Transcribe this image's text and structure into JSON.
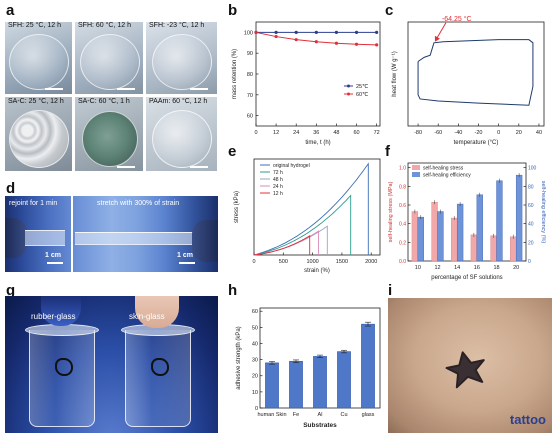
{
  "panels": {
    "a": {
      "label": "a",
      "captions": [
        "SFH: 25 °C, 12 h",
        "SFH: 60 °C, 12 h",
        "SFH: -23 °C, 12 h",
        "SA-C: 25 °C, 12 h",
        "SA-C: 60 °C, 1 h",
        "PAAm: 60 °C, 12 h"
      ]
    },
    "b": {
      "label": "b"
    },
    "c": {
      "label": "c"
    },
    "d": {
      "label": "d",
      "left_caption": "rejoint for 1 min",
      "right_caption": "stretch with 300% of strain",
      "scale_left": "1 cm",
      "scale_right": "1 cm"
    },
    "e": {
      "label": "e"
    },
    "f": {
      "label": "f"
    },
    "g": {
      "label": "g",
      "left_caption": "rubber-glass",
      "right_caption": "skin-glass"
    },
    "h": {
      "label": "h"
    },
    "i": {
      "label": "i",
      "caption": "tattoo"
    }
  },
  "chart_data": [
    {
      "panel": "b",
      "type": "line",
      "xlabel": "time, t (h)",
      "ylabel": "mass retention (%)",
      "xticks": [
        0,
        12,
        24,
        36,
        48,
        60,
        72
      ],
      "yticks": [
        60,
        70,
        80,
        90,
        100
      ],
      "xlim": [
        0,
        74
      ],
      "ylim": [
        55,
        105
      ],
      "legend_position": "center-right",
      "colors": [
        "#2b3f8f",
        "#e0303a"
      ],
      "series": [
        {
          "name": "25℃",
          "x": [
            0,
            12,
            24,
            36,
            48,
            60,
            72
          ],
          "y": [
            100,
            100,
            100,
            100,
            100,
            100,
            100
          ]
        },
        {
          "name": "60℃",
          "x": [
            0,
            12,
            24,
            36,
            48,
            60,
            72
          ],
          "y": [
            100,
            98,
            96.5,
            95.5,
            94.8,
            94.3,
            94
          ]
        }
      ]
    },
    {
      "panel": "c",
      "type": "line",
      "xlabel": "temperature (°C)",
      "ylabel": "heat flow (W g⁻¹)",
      "xticks": [
        -80,
        -60,
        -40,
        -20,
        0,
        20,
        40
      ],
      "xlim": [
        -90,
        45
      ],
      "ylim": [
        0,
        1
      ],
      "annotation": "-64.25 °C",
      "annotation_x": -64.25,
      "color": "#1f3a6e",
      "loop": [
        [
          -80,
          0.62
        ],
        [
          -74,
          0.66
        ],
        [
          -68,
          0.68
        ],
        [
          -64.25,
          0.8
        ],
        [
          -55,
          0.81
        ],
        [
          0,
          0.83
        ],
        [
          30,
          0.83
        ],
        [
          34,
          0.8
        ],
        [
          34,
          0.38
        ],
        [
          30,
          0.2
        ],
        [
          -20,
          0.22
        ],
        [
          -60,
          0.24
        ],
        [
          -78,
          0.26
        ],
        [
          -80,
          0.3
        ],
        [
          -80,
          0.62
        ]
      ]
    },
    {
      "panel": "e",
      "type": "line",
      "xlabel": "strain (%)",
      "ylabel": "stress (kPa)",
      "xticks": [
        0,
        500,
        1000,
        1500,
        2000
      ],
      "xlim": [
        0,
        2150
      ],
      "ylim": [
        0,
        1
      ],
      "legend_position": "top-left",
      "series": [
        {
          "name": "original hydrogel",
          "color": "#3f6fb5",
          "break_strain": 1950,
          "peak": 0.95
        },
        {
          "name": "72 h",
          "color": "#2a9d8f",
          "break_strain": 1650,
          "peak": 0.62
        },
        {
          "name": "48 h",
          "color": "#9aa3c9",
          "break_strain": 1250,
          "peak": 0.3
        },
        {
          "name": "24 h",
          "color": "#d98db8",
          "break_strain": 1100,
          "peak": 0.25
        },
        {
          "name": "12 h",
          "color": "#e0303a",
          "break_strain": 950,
          "peak": 0.2
        }
      ]
    },
    {
      "panel": "f",
      "type": "bar",
      "xlabel": "percentage of SF solutions",
      "ylabel": "self-healing stress (MPa)",
      "ylabel2": "self-healing efficiency (%)",
      "categories": [
        "10",
        "12",
        "14",
        "16",
        "18",
        "20"
      ],
      "yticks": [
        0.0,
        0.2,
        0.4,
        0.6,
        0.8,
        1.0
      ],
      "yticks2": [
        0,
        20,
        40,
        60,
        80,
        100
      ],
      "ylim": [
        0,
        1.05
      ],
      "ylim2": [
        0,
        105
      ],
      "legend_position": "top-left",
      "series": [
        {
          "name": "self-healing stress",
          "color": "#f2a8a8",
          "values": [
            0.53,
            0.63,
            0.46,
            0.28,
            0.27,
            0.26
          ]
        },
        {
          "name": "self-healing efficiency",
          "color": "#6f93d8",
          "axis": "right",
          "values": [
            47,
            53,
            61,
            71,
            86,
            92
          ]
        }
      ]
    },
    {
      "panel": "h",
      "type": "bar",
      "xlabel": "Substrates",
      "ylabel": "adhesive strength (kPa)",
      "categories": [
        "human Skin",
        "Fe",
        "Al",
        "Cu",
        "glass"
      ],
      "yticks": [
        0,
        10,
        20,
        30,
        40,
        50,
        60
      ],
      "ylim": [
        0,
        62
      ],
      "color": "#4f78c9",
      "values": [
        28,
        29,
        32,
        35,
        52
      ],
      "errors": [
        0.8,
        0.8,
        0.8,
        0.8,
        1.2
      ]
    }
  ]
}
